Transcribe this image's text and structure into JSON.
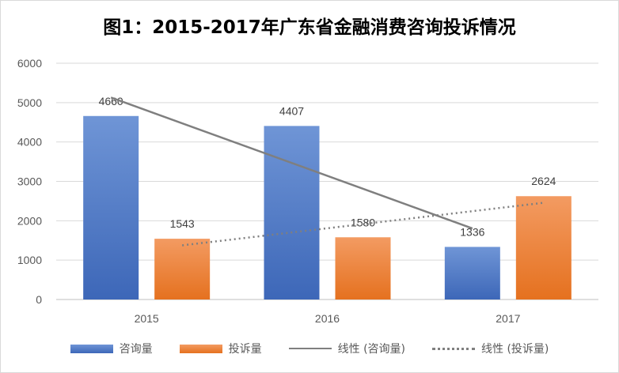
{
  "chart_data": {
    "type": "bar",
    "title": "图1：2015-2017年广东省金融消费咨询投诉情况",
    "categories": [
      "2015",
      "2016",
      "2017"
    ],
    "series": [
      {
        "name": "咨询量",
        "values": [
          4660,
          4407,
          1336
        ],
        "color": "#4472c4"
      },
      {
        "name": "投诉量",
        "values": [
          1543,
          1580,
          2624
        ],
        "color": "#ed7d31"
      }
    ],
    "trendlines": [
      {
        "name": "线性 (咨询量)",
        "of": "咨询量",
        "style": "solid",
        "color": "#7f7f7f"
      },
      {
        "name": "线性 (投诉量)",
        "of": "投诉量",
        "style": "dotted",
        "color": "#7f7f7f"
      }
    ],
    "y_ticks": [
      "0",
      "1000",
      "2000",
      "3000",
      "4000",
      "5000",
      "6000"
    ],
    "ylim": [
      0,
      6000
    ],
    "xlabel": "",
    "ylabel": "",
    "grid": true,
    "legend_position": "bottom"
  }
}
